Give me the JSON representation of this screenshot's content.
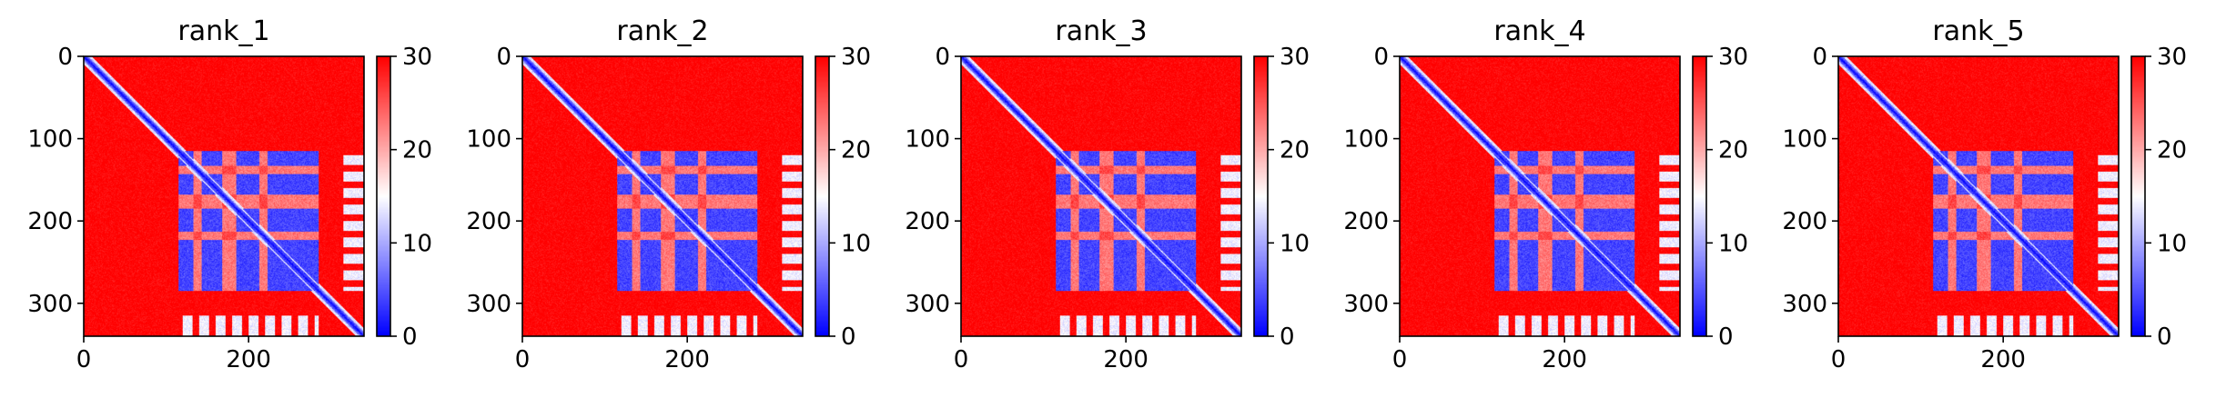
{
  "chart_data": {
    "type": "heatmap",
    "colormap": {
      "name": "bwr",
      "low": "#0000ff",
      "mid": "#ffffff",
      "high": "#ff0000"
    },
    "vmin": 0,
    "vmax": 30,
    "matrix_size": 340,
    "structure": {
      "diagonal_band": {
        "low_value": 0,
        "approx_width_residues": 10
      },
      "domain_block": {
        "range": [
          115,
          285
        ],
        "value": 4,
        "row_breaks_high": [
          [
            133,
            143
          ],
          [
            168,
            185
          ],
          [
            213,
            223
          ]
        ],
        "col_breaks_high": [
          [
            133,
            143
          ],
          [
            168,
            185
          ],
          [
            213,
            223
          ]
        ]
      },
      "background_value": 30,
      "c_terminal_strip": {
        "rows": [
          315,
          340
        ],
        "cols": [
          115,
          285
        ],
        "value": 14
      }
    },
    "panels": [
      {
        "title": "rank_1",
        "x_ticks": [
          "0",
          "200"
        ],
        "x_tick_values": [
          0,
          200
        ],
        "y_ticks": [
          "0",
          "100",
          "200",
          "300"
        ],
        "y_tick_values": [
          0,
          100,
          200,
          300
        ],
        "colorbar_ticks": [
          "0",
          "10",
          "20",
          "30"
        ],
        "colorbar_tick_values": [
          0,
          10,
          20,
          30
        ]
      },
      {
        "title": "rank_2",
        "x_ticks": [
          "0",
          "200"
        ],
        "x_tick_values": [
          0,
          200
        ],
        "y_ticks": [
          "0",
          "100",
          "200",
          "300"
        ],
        "y_tick_values": [
          0,
          100,
          200,
          300
        ],
        "colorbar_ticks": [
          "0",
          "10",
          "20",
          "30"
        ],
        "colorbar_tick_values": [
          0,
          10,
          20,
          30
        ]
      },
      {
        "title": "rank_3",
        "x_ticks": [
          "0",
          "200"
        ],
        "x_tick_values": [
          0,
          200
        ],
        "y_ticks": [
          "0",
          "100",
          "200",
          "300"
        ],
        "y_tick_values": [
          0,
          100,
          200,
          300
        ],
        "colorbar_ticks": [
          "0",
          "10",
          "20",
          "30"
        ],
        "colorbar_tick_values": [
          0,
          10,
          20,
          30
        ]
      },
      {
        "title": "rank_4",
        "x_ticks": [
          "0",
          "200"
        ],
        "x_tick_values": [
          0,
          200
        ],
        "y_ticks": [
          "0",
          "100",
          "200",
          "300"
        ],
        "y_tick_values": [
          0,
          100,
          200,
          300
        ],
        "colorbar_ticks": [
          "0",
          "10",
          "20",
          "30"
        ],
        "colorbar_tick_values": [
          0,
          10,
          20,
          30
        ]
      },
      {
        "title": "rank_5",
        "x_ticks": [
          "0",
          "200"
        ],
        "x_tick_values": [
          0,
          200
        ],
        "y_ticks": [
          "0",
          "100",
          "200",
          "300"
        ],
        "y_tick_values": [
          0,
          100,
          200,
          300
        ],
        "colorbar_ticks": [
          "0",
          "10",
          "20",
          "30"
        ],
        "colorbar_tick_values": [
          0,
          10,
          20,
          30
        ]
      }
    ]
  }
}
